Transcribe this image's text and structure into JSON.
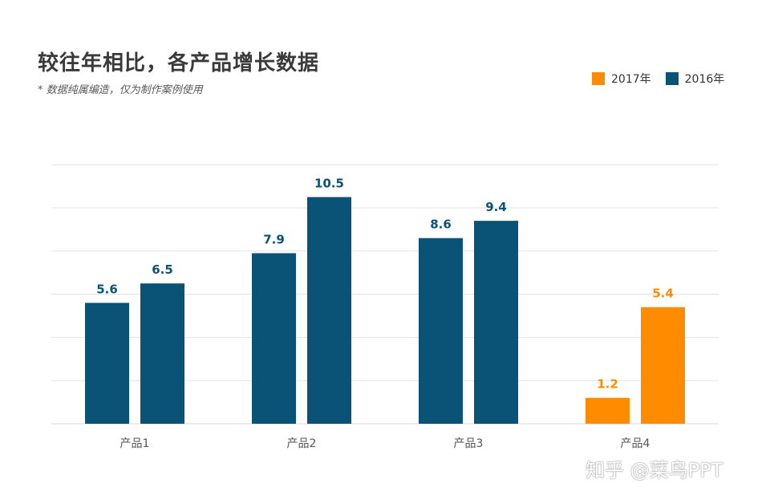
{
  "title": "较往年相比，各产品增长数据",
  "subtitle": "* 数据纯属编造，仅为制作案例使用",
  "watermark": "知乎 @菜鸟PPT",
  "colors": {
    "series_2017": "#ff8c00",
    "series_2016": "#0b5277",
    "grid": "#e3e3e3",
    "axis_text": "#555555"
  },
  "chart_data": {
    "type": "bar",
    "categories": [
      "产品1",
      "产品2",
      "产品3",
      "产品4"
    ],
    "series": [
      {
        "name": "2017年",
        "color": "#ff8c00"
      },
      {
        "name": "2016年",
        "color": "#0b5277"
      }
    ],
    "bars": [
      [
        {
          "value": 5.6,
          "series": "2016年"
        },
        {
          "value": 6.5,
          "series": "2016年"
        }
      ],
      [
        {
          "value": 7.9,
          "series": "2016年"
        },
        {
          "value": 10.5,
          "series": "2016年"
        }
      ],
      [
        {
          "value": 8.6,
          "series": "2016年"
        },
        {
          "value": 9.4,
          "series": "2016年"
        }
      ],
      [
        {
          "value": 1.2,
          "series": "2017年"
        },
        {
          "value": 5.4,
          "series": "2017年"
        }
      ]
    ],
    "ylim": [
      0,
      12
    ],
    "grid": true,
    "legend": "top-right"
  }
}
